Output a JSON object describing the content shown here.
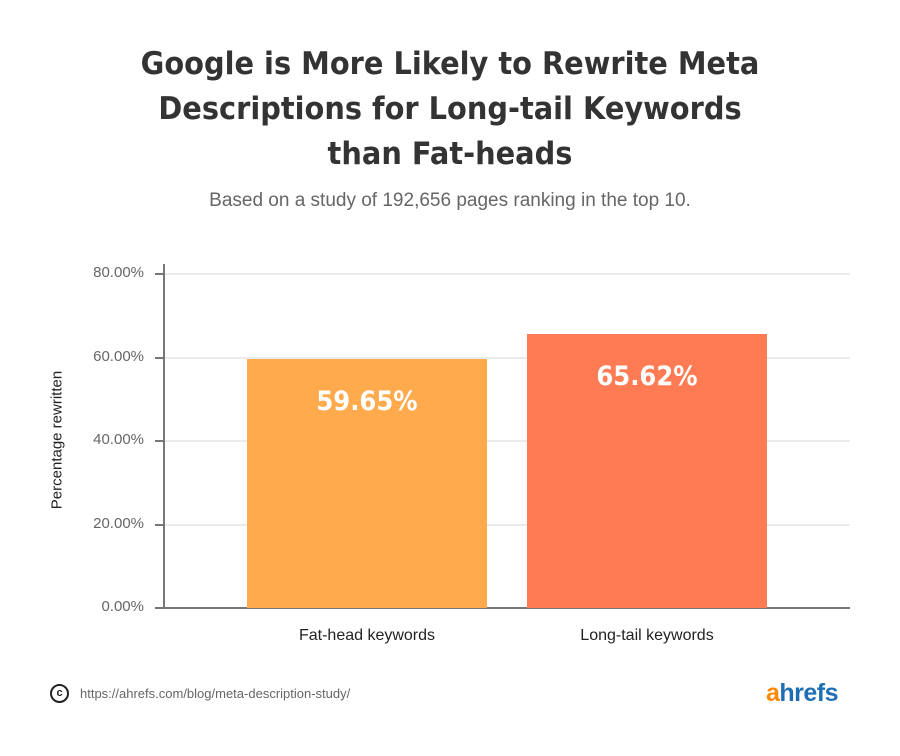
{
  "header": {
    "title_lines": [
      "Google is More Likely to Rewrite Meta",
      "Descriptions for Long-tail Keywords",
      "than Fat-heads"
    ],
    "subtitle": "Based on a study of 192,656 pages ranking in the top 10."
  },
  "footer": {
    "copyright_icon": "copyright-icon",
    "source_url": "https://ahrefs.com/blog/meta-description-study/",
    "logo_a": "a",
    "logo_rest": "hrefs"
  },
  "colors": {
    "fat_head_bar": "#ffaa4d",
    "long_tail_bar": "#ff7b53",
    "logo_orange": "#ff8800",
    "logo_blue": "#1e6fb4"
  },
  "chart_data": {
    "type": "bar",
    "title": "Google is More Likely to Rewrite Meta Descriptions for Long-tail Keywords than Fat-heads",
    "subtitle": "Based on a study of 192,656 pages ranking in the top 10.",
    "categories": [
      "Fat-head keywords",
      "Long-tail keywords"
    ],
    "values": [
      59.65,
      65.62
    ],
    "data_labels": [
      "59.65%",
      "65.62%"
    ],
    "xlabel": "",
    "ylabel": "Percentage rewritten",
    "ylim": [
      0,
      80
    ],
    "yticks": [
      "0.00%",
      "20.00%",
      "40.00%",
      "60.00%",
      "80.00%"
    ],
    "grid": true,
    "legend": "none"
  }
}
